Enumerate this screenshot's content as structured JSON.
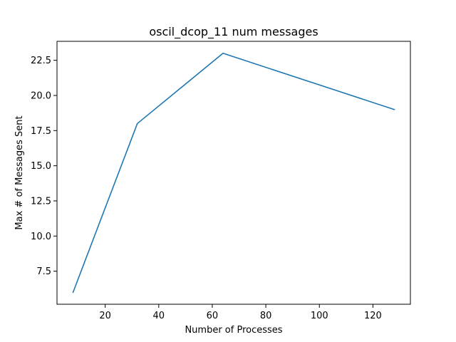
{
  "chart_data": {
    "type": "line",
    "title": "oscil_dcop_11 num messages",
    "xlabel": "Number of Processes",
    "ylabel": "Max # of Messages Sent",
    "xlim": [
      2,
      134
    ],
    "ylim": [
      5.15,
      23.85
    ],
    "xticks": [
      20,
      40,
      60,
      80,
      100,
      120
    ],
    "yticks": [
      7.5,
      10.0,
      12.5,
      15.0,
      17.5,
      20.0,
      22.5
    ],
    "ytick_labels": [
      "7.5",
      "10.0",
      "12.5",
      "15.0",
      "17.5",
      "20.0",
      "22.5"
    ],
    "grid": false,
    "series": [
      {
        "color": "#1f77b4",
        "x": [
          8,
          32,
          64,
          128
        ],
        "y": [
          6,
          18,
          23,
          19
        ]
      }
    ]
  }
}
